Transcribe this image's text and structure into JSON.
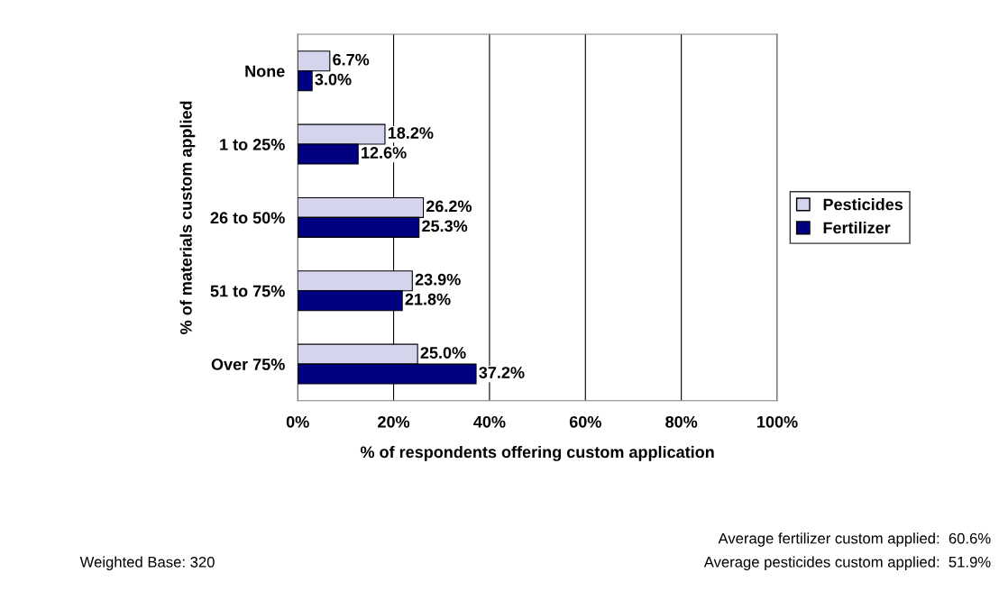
{
  "chart_data": {
    "type": "bar",
    "orientation": "horizontal",
    "categories": [
      "None",
      "1 to 25%",
      "26 to 50%",
      "51 to 75%",
      "Over 75%"
    ],
    "series": [
      {
        "name": "Pesticides",
        "color": "#d4d4ec",
        "values": [
          6.7,
          18.2,
          26.2,
          23.9,
          25.0
        ],
        "value_labels": [
          "6.7%",
          "18.2%",
          "26.2%",
          "23.9%",
          "25.0%"
        ]
      },
      {
        "name": "Fertilizer",
        "color": "#000080",
        "values": [
          3.0,
          12.6,
          25.3,
          21.8,
          37.2
        ],
        "value_labels": [
          "3.0%",
          "12.6%",
          "25.3%",
          "21.8%",
          "37.2%"
        ]
      }
    ],
    "xlabel": "% of respondents offering custom application",
    "ylabel": "% of materials custom applied",
    "xlim": [
      0,
      100
    ],
    "xticks": [
      {
        "value": 0,
        "label": "0%"
      },
      {
        "value": 20,
        "label": "20%"
      },
      {
        "value": 40,
        "label": "40%"
      },
      {
        "value": 60,
        "label": "60%"
      },
      {
        "value": 80,
        "label": "80%"
      },
      {
        "value": 100,
        "label": "100%"
      }
    ],
    "grid": "x",
    "legend": "right",
    "annotations": [
      "Weighted Base: 320",
      "Average fertilizer custom applied:  60.6%",
      "Average pesticides custom applied:  51.9%"
    ]
  }
}
